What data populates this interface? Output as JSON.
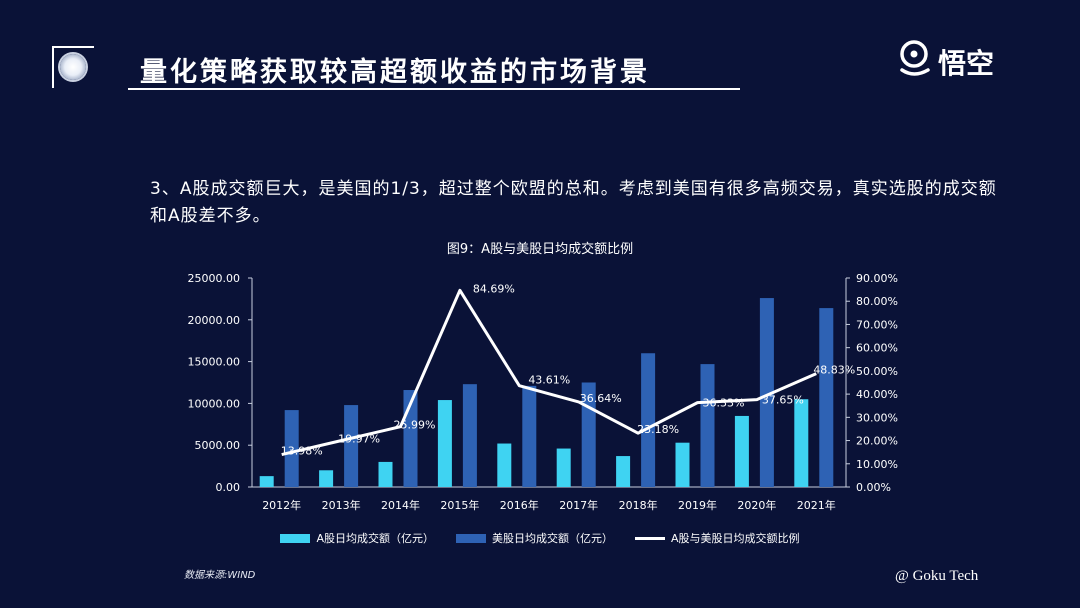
{
  "header": {
    "title": "量化策略获取较高超额收益的市场背景",
    "logo_text": "悟空"
  },
  "body": {
    "paragraph": "3、A股成交额巨大，是美国的1/3，超过整个欧盟的总和。考虑到美国有很多高频交易，真实选股的成交额和A股差不多。"
  },
  "footer": {
    "source": "数据来源:WIND",
    "copyright": "@ Goku Tech"
  },
  "colors": {
    "background": "#0a1237",
    "a_share": "#3fd3f2",
    "us_share": "#2e62b4",
    "ratio_line": "#ffffff"
  },
  "chart_data": {
    "type": "bar",
    "title": "图9：A股与美股日均成交额比例",
    "categories": [
      "2012年",
      "2013年",
      "2014年",
      "2015年",
      "2016年",
      "2017年",
      "2018年",
      "2019年",
      "2020年",
      "2021年"
    ],
    "series": [
      {
        "name": "A股日均成交额（亿元）",
        "type": "bar",
        "axis": "left",
        "values": [
          1300,
          2000,
          3000,
          10400,
          5200,
          4600,
          3700,
          5300,
          8500,
          10500
        ]
      },
      {
        "name": "美股日均成交额（亿元）",
        "type": "bar",
        "axis": "left",
        "values": [
          9200,
          9800,
          11600,
          12300,
          12100,
          12500,
          16000,
          14700,
          22600,
          21400
        ]
      },
      {
        "name": "A股与美股日均成交额比例",
        "type": "line",
        "axis": "right",
        "values": [
          13.98,
          19.97,
          25.99,
          84.69,
          43.61,
          36.64,
          23.18,
          36.33,
          37.65,
          48.83
        ],
        "labels": [
          "13.98%",
          "19.97%",
          "25.99%",
          "84.69%",
          "43.61%",
          "36.64%",
          "23.18%",
          "36.33%",
          "37.65%",
          "48.83%"
        ]
      }
    ],
    "y_left": {
      "ylim": [
        0,
        25000
      ],
      "ticks": [
        "0.00",
        "5000.00",
        "10000.00",
        "15000.00",
        "20000.00",
        "25000.00"
      ],
      "tick_values": [
        0,
        5000,
        10000,
        15000,
        20000,
        25000
      ]
    },
    "y_right": {
      "ylim": [
        0,
        90
      ],
      "ticks": [
        "0.00%",
        "10.00%",
        "20.00%",
        "30.00%",
        "40.00%",
        "50.00%",
        "60.00%",
        "70.00%",
        "80.00%",
        "90.00%"
      ],
      "tick_values": [
        0,
        10,
        20,
        30,
        40,
        50,
        60,
        70,
        80,
        90
      ]
    },
    "legend": [
      "A股日均成交额（亿元）",
      "美股日均成交额（亿元）",
      "A股与美股日均成交额比例"
    ],
    "legend_position": "bottom"
  }
}
